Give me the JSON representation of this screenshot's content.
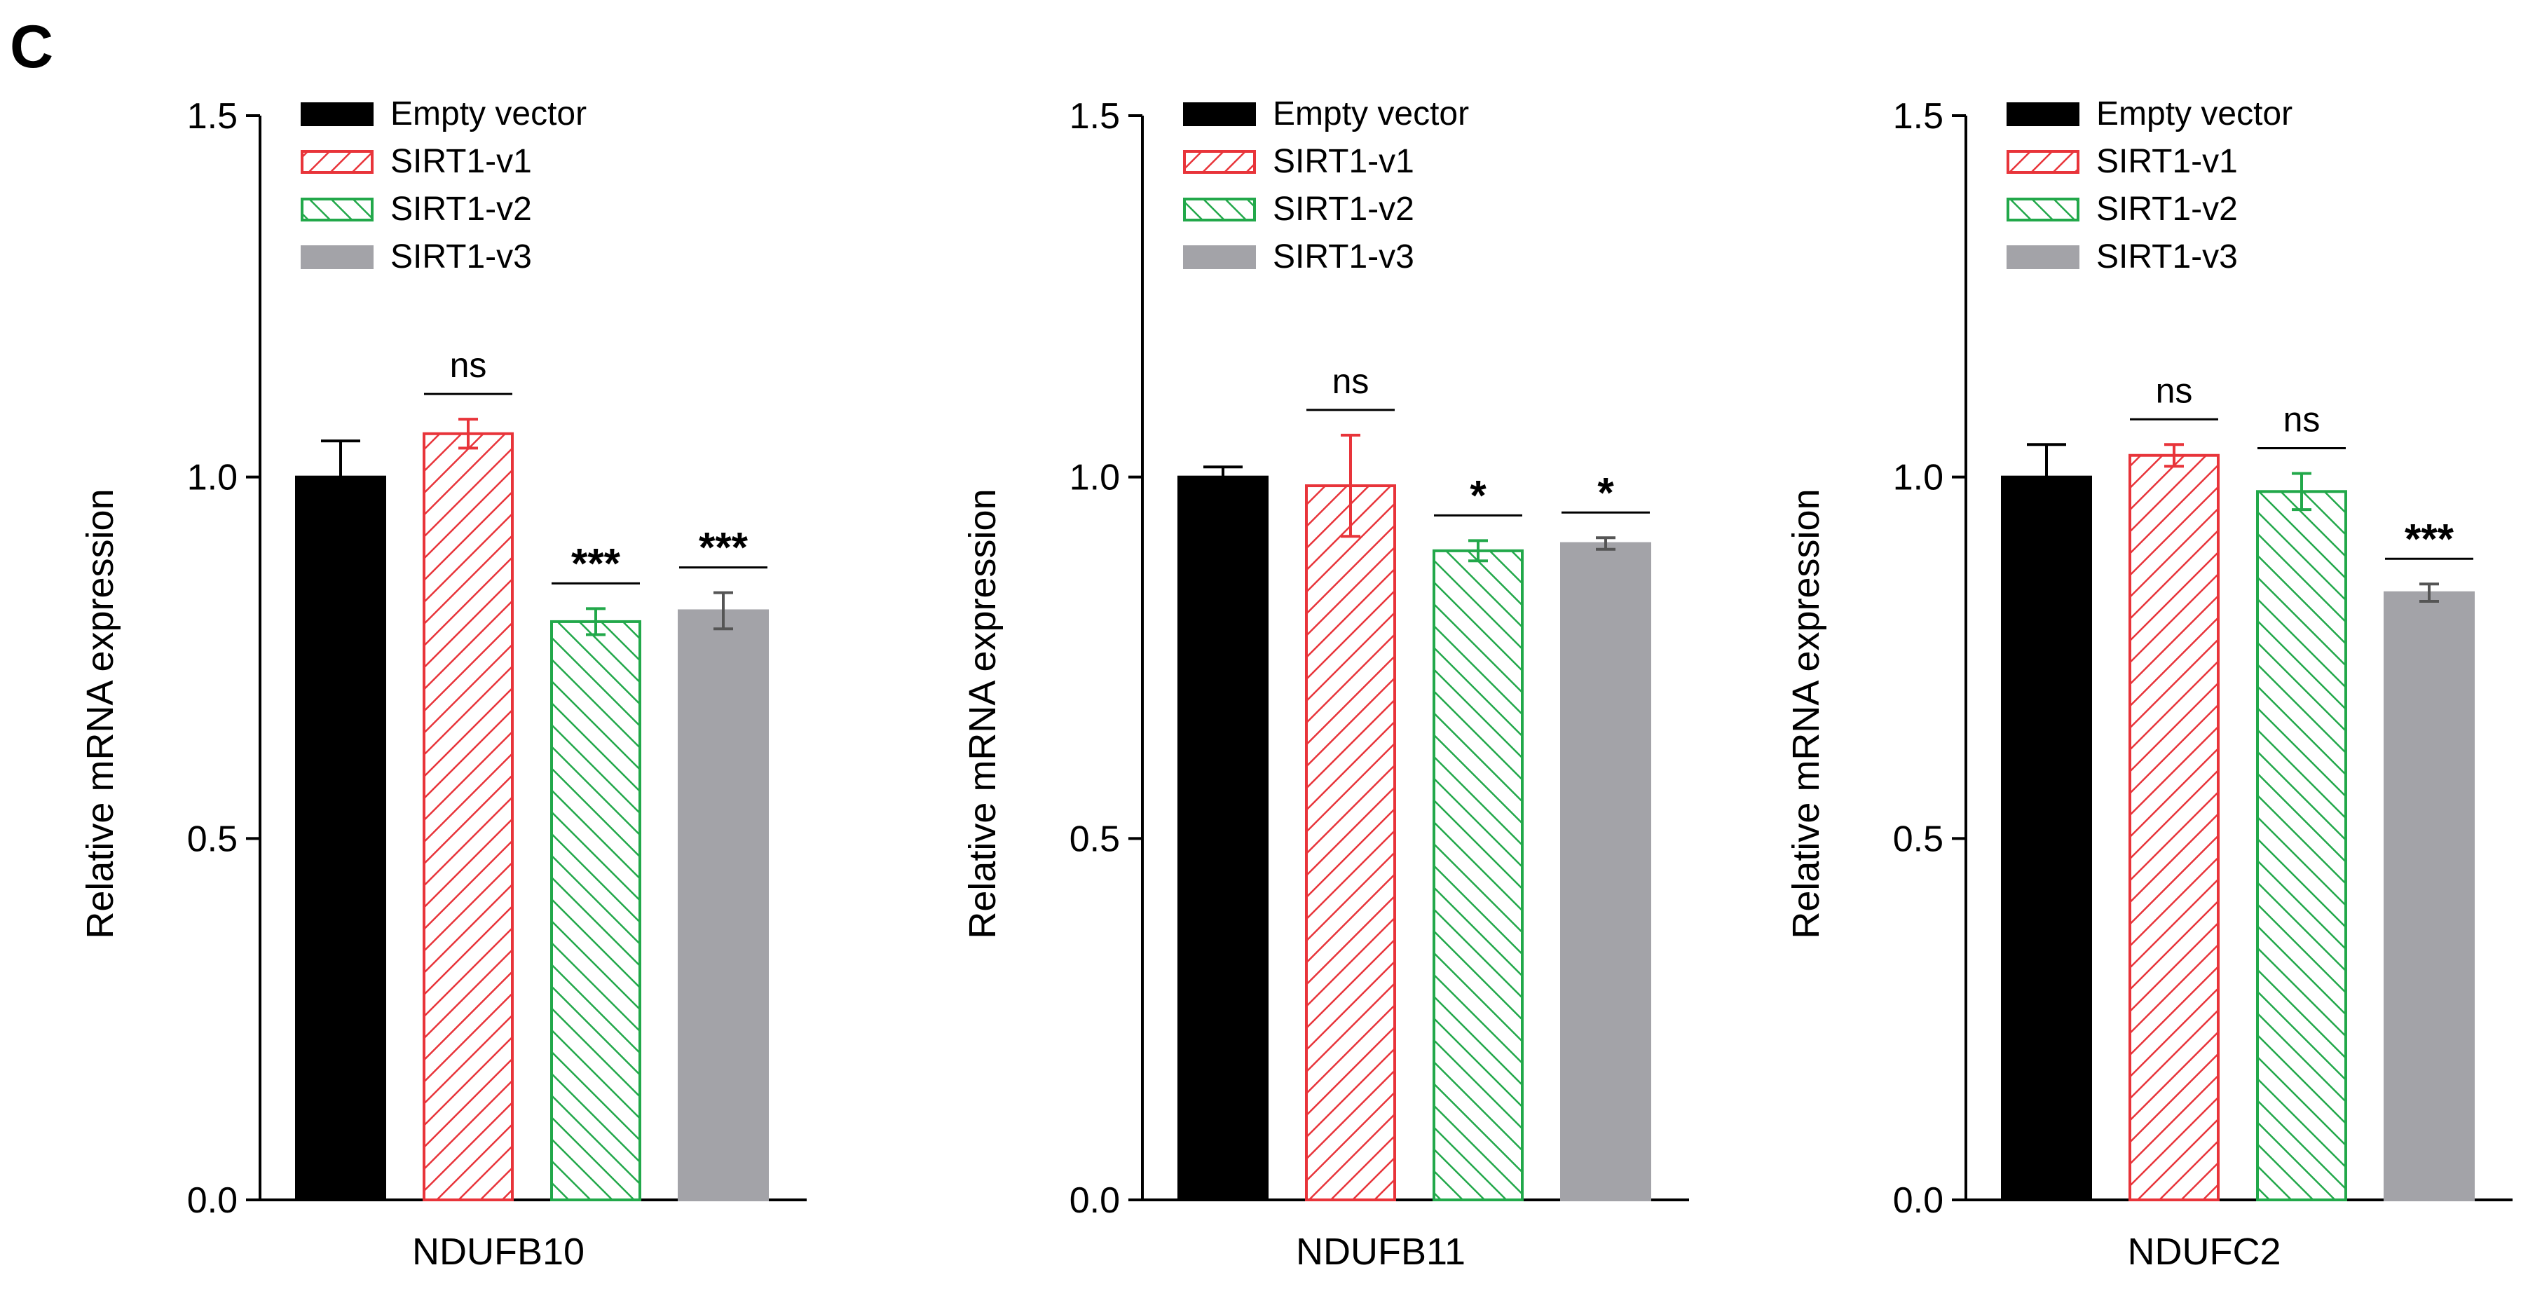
{
  "figure": {
    "panel_label": "C"
  },
  "colors": {
    "empty_vector": "#000000",
    "sirt1_v1": "#e8343a",
    "sirt1_v2": "#22a84a",
    "sirt1_v3": "#a3a3a8",
    "error_v3": "#555555"
  },
  "chart_data": [
    {
      "type": "bar",
      "title": "",
      "xlabel": "NDUFB10",
      "ylabel": "Relative mRNA expression",
      "ylim": [
        0,
        1.5
      ],
      "yticks": [
        "0.0",
        "0.5",
        "1.0",
        "1.5"
      ],
      "legend": [
        "Empty vector",
        "SIRT1-v1",
        "SIRT1-v2",
        "SIRT1-v3"
      ],
      "legend_position": "top-left",
      "series": [
        {
          "name": "Empty vector",
          "value": 1.0,
          "error": 0.05,
          "sig": ""
        },
        {
          "name": "SIRT1-v1",
          "value": 1.06,
          "error": 0.02,
          "sig": "ns"
        },
        {
          "name": "SIRT1-v2",
          "value": 0.8,
          "error": 0.018,
          "sig": "***"
        },
        {
          "name": "SIRT1-v3",
          "value": 0.815,
          "error": 0.025,
          "sig": "***"
        }
      ]
    },
    {
      "type": "bar",
      "title": "",
      "xlabel": "NDUFB11",
      "ylabel": "Relative mRNA expression",
      "ylim": [
        0,
        1.5
      ],
      "yticks": [
        "0.0",
        "0.5",
        "1.0",
        "1.5"
      ],
      "legend": [
        "Empty vector",
        "SIRT1-v1",
        "SIRT1-v2",
        "SIRT1-v3"
      ],
      "legend_position": "top-left",
      "series": [
        {
          "name": "Empty vector",
          "value": 1.0,
          "error": 0.014,
          "sig": ""
        },
        {
          "name": "SIRT1-v1",
          "value": 0.988,
          "error": 0.07,
          "sig": "ns"
        },
        {
          "name": "SIRT1-v2",
          "value": 0.898,
          "error": 0.014,
          "sig": "*"
        },
        {
          "name": "SIRT1-v3",
          "value": 0.908,
          "error": 0.008,
          "sig": "*"
        }
      ]
    },
    {
      "type": "bar",
      "title": "",
      "xlabel": "NDUFC2",
      "ylabel": "Relative mRNA expression",
      "ylim": [
        0,
        1.5
      ],
      "yticks": [
        "0.0",
        "0.5",
        "1.0",
        "1.5"
      ],
      "legend": [
        "Empty vector",
        "SIRT1-v1",
        "SIRT1-v2",
        "SIRT1-v3"
      ],
      "legend_position": "top-left",
      "series": [
        {
          "name": "Empty vector",
          "value": 1.0,
          "error": 0.045,
          "sig": ""
        },
        {
          "name": "SIRT1-v1",
          "value": 1.03,
          "error": 0.015,
          "sig": "ns"
        },
        {
          "name": "SIRT1-v2",
          "value": 0.98,
          "error": 0.025,
          "sig": "ns"
        },
        {
          "name": "SIRT1-v3",
          "value": 0.84,
          "error": 0.012,
          "sig": "***"
        }
      ]
    }
  ]
}
